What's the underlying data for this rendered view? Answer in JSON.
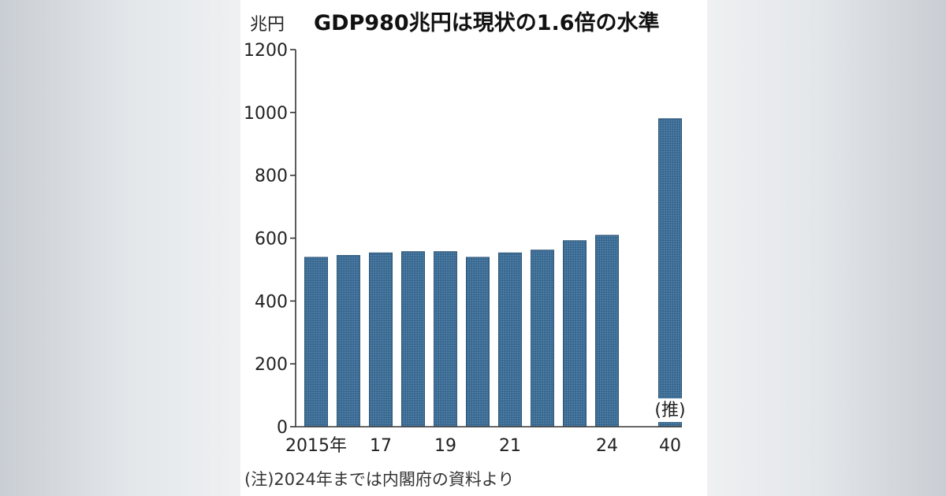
{
  "chart_data": {
    "type": "bar",
    "title": "GDP980兆円は現状の1.6倍の水準",
    "ylabel": "兆円",
    "xlabel": "",
    "ylim": [
      0,
      1200
    ],
    "yticks": [
      0,
      200,
      400,
      600,
      800,
      1000,
      1200
    ],
    "categories": [
      "2015",
      "2016",
      "2017",
      "2018",
      "2019",
      "2020",
      "2021",
      "2022",
      "2023",
      "2024",
      "2040"
    ],
    "x_tick_labels": [
      "2015年",
      "",
      "17",
      "",
      "19",
      "",
      "21",
      "",
      "",
      "24",
      "40"
    ],
    "values": [
      539,
      545,
      553,
      557,
      557,
      539,
      553,
      562,
      592,
      609,
      980
    ],
    "annotations": [
      {
        "category": "2040",
        "text": "(推)"
      }
    ],
    "note": "(注)2024年までは内閣府の資料より",
    "bar_color": "#3f6f97",
    "grid": false
  }
}
